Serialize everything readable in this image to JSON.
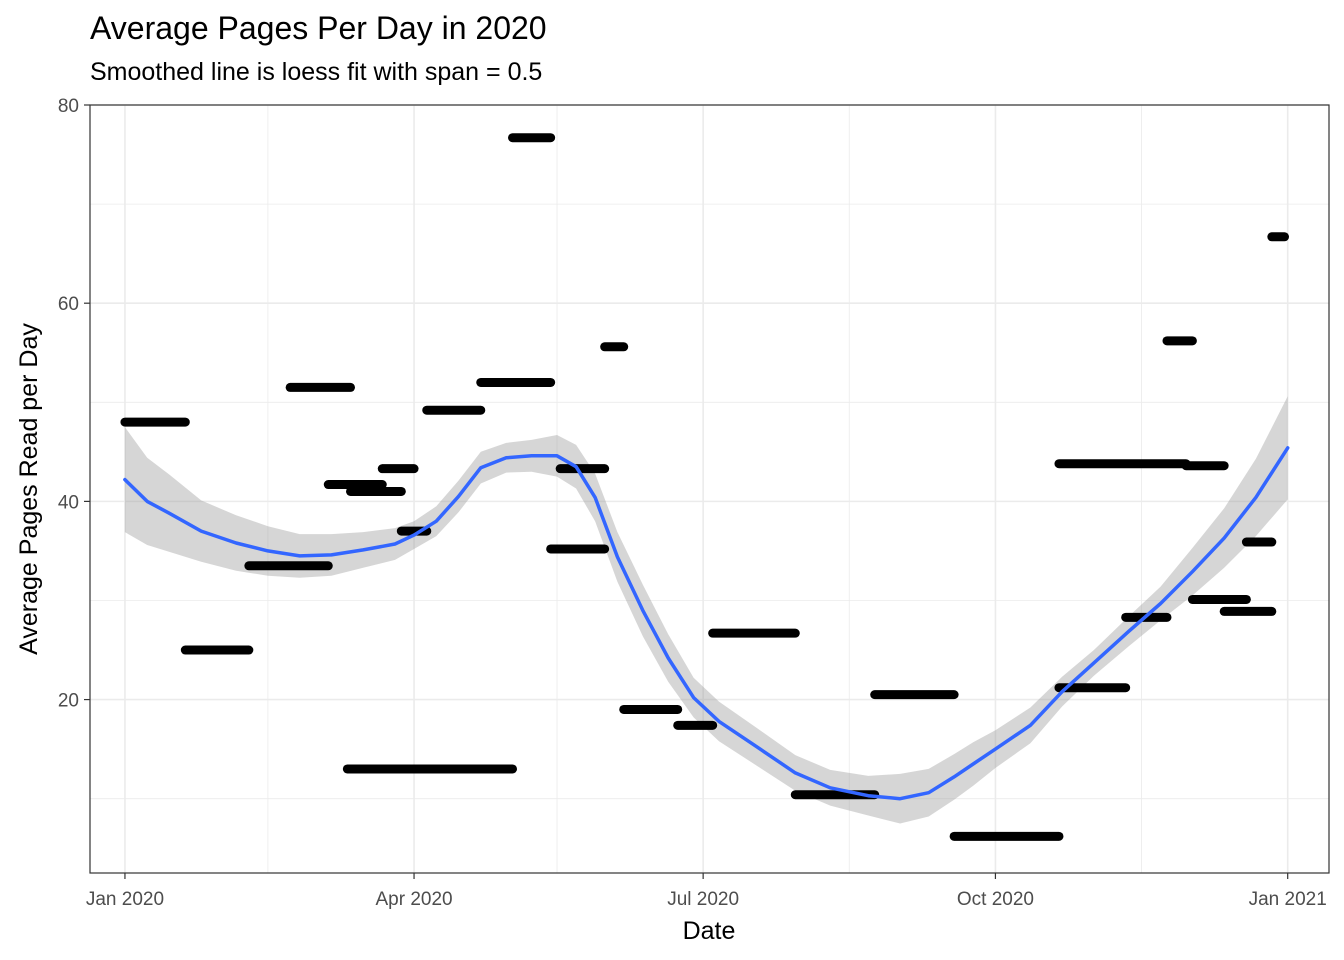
{
  "chart_data": {
    "type": "scatter",
    "title": "Average Pages Per Day in 2020",
    "subtitle": "Smoothed line is loess fit with span = 0.5",
    "xlabel": "Date",
    "ylabel": "Average Pages Read per Day",
    "x_axis_type": "date",
    "xlim": [
      "2019-12-21",
      "2021-01-14"
    ],
    "ylim": [
      2.5,
      80
    ],
    "x_ticks": [
      {
        "date": "2020-01-01",
        "label": "Jan 2020"
      },
      {
        "date": "2020-04-01",
        "label": "Apr 2020"
      },
      {
        "date": "2020-07-01",
        "label": "Jul 2020"
      },
      {
        "date": "2020-10-01",
        "label": "Oct 2020"
      },
      {
        "date": "2021-01-01",
        "label": "Jan 2021"
      }
    ],
    "x_minor_ticks": [
      "2020-02-15",
      "2020-05-16",
      "2020-08-16",
      "2020-11-16"
    ],
    "y_ticks": [
      20,
      40,
      60,
      80
    ],
    "y_minor_ticks": [
      10,
      30,
      50,
      70
    ],
    "grid": true,
    "colors": {
      "points": "#000000",
      "smooth_line": "#3366FF",
      "ribbon": "#999999",
      "grid": "#ebebeb",
      "panel_border": "#333333"
    },
    "series": [
      {
        "type": "scatter",
        "x_start": [
          "2020-01-01",
          "2020-01-20",
          "2020-02-09",
          "2020-02-22",
          "2020-03-05",
          "2020-03-12",
          "2020-03-22",
          "2020-03-11",
          "2020-03-28",
          "2020-04-05",
          "2020-04-22",
          "2020-05-02",
          "2020-05-14",
          "2020-05-17",
          "2020-05-31",
          "2020-06-06",
          "2020-06-23",
          "2020-07-04",
          "2020-07-30",
          "2020-08-24",
          "2020-09-18",
          "2020-10-21",
          "2020-10-21",
          "2020-11-11",
          "2020-11-24",
          "2020-11-30",
          "2020-12-02",
          "2020-12-12",
          "2020-12-19",
          "2020-12-27"
        ],
        "x_end": [
          "2020-01-20",
          "2020-02-09",
          "2020-03-05",
          "2020-03-12",
          "2020-03-22",
          "2020-03-28",
          "2020-04-01",
          "2020-05-02",
          "2020-04-05",
          "2020-04-22",
          "2020-05-14",
          "2020-05-14",
          "2020-05-31",
          "2020-05-31",
          "2020-06-06",
          "2020-06-23",
          "2020-07-04",
          "2020-07-30",
          "2020-08-24",
          "2020-09-18",
          "2020-10-21",
          "2020-11-11",
          "2020-11-30",
          "2020-11-24",
          "2020-12-02",
          "2020-12-12",
          "2020-12-19",
          "2020-12-27",
          "2020-12-27",
          "2020-12-31"
        ],
        "y": [
          48,
          25,
          33.5,
          51.5,
          41.7,
          41,
          43.3,
          13,
          37,
          49.2,
          52,
          76.7,
          35.2,
          43.3,
          55.6,
          19,
          17.4,
          26.7,
          10.4,
          20.5,
          6.2,
          21.2,
          43.8,
          28.3,
          56.2,
          43.6,
          30.1,
          28.9,
          35.9,
          66.7
        ]
      },
      {
        "type": "line",
        "name": "loess",
        "x": [
          "2020-01-01",
          "2020-01-08",
          "2020-01-15",
          "2020-01-25",
          "2020-02-05",
          "2020-02-15",
          "2020-02-25",
          "2020-03-06",
          "2020-03-16",
          "2020-03-26",
          "2020-04-01",
          "2020-04-08",
          "2020-04-15",
          "2020-04-22",
          "2020-04-30",
          "2020-05-08",
          "2020-05-16",
          "2020-05-22",
          "2020-05-28",
          "2020-06-04",
          "2020-06-12",
          "2020-06-20",
          "2020-06-28",
          "2020-07-06",
          "2020-07-18",
          "2020-07-30",
          "2020-08-10",
          "2020-08-22",
          "2020-09-01",
          "2020-09-10",
          "2020-09-18",
          "2020-09-24",
          "2020-10-01",
          "2020-10-12",
          "2020-10-22",
          "2020-11-01",
          "2020-11-12",
          "2020-11-22",
          "2020-12-02",
          "2020-12-12",
          "2020-12-22",
          "2021-01-01"
        ],
        "y": [
          42.2,
          40,
          38.8,
          37,
          35.8,
          35,
          34.5,
          34.6,
          35.1,
          35.7,
          36.6,
          38,
          40.5,
          43.4,
          44.4,
          44.6,
          44.6,
          43.5,
          40.4,
          34.4,
          29,
          24.2,
          20.2,
          17.8,
          15.2,
          12.6,
          11.1,
          10.3,
          10,
          10.6,
          12.2,
          13.5,
          15,
          17.4,
          20.8,
          23.7,
          26.9,
          29.7,
          32.9,
          36.3,
          40.4,
          45.4
        ],
        "lower": [
          36.9,
          35.6,
          34.9,
          33.9,
          33,
          32.5,
          32.3,
          32.5,
          33.3,
          34.1,
          35.2,
          36.5,
          38.9,
          41.8,
          42.9,
          43,
          42.5,
          41.3,
          38,
          31.9,
          26.4,
          21.8,
          18.2,
          15.8,
          13.3,
          10.8,
          9.3,
          8.3,
          7.5,
          8.2,
          9.9,
          11.3,
          13.1,
          15.6,
          19.3,
          22.4,
          25.4,
          28,
          30.5,
          33.3,
          36.5,
          40.2
        ],
        "upper": [
          47.5,
          44.4,
          42.7,
          40.1,
          38.6,
          37.5,
          36.7,
          36.7,
          36.9,
          37.3,
          38,
          39.5,
          42.1,
          45,
          45.9,
          46.2,
          46.7,
          45.7,
          42.8,
          36.9,
          31.6,
          26.6,
          22.2,
          19.8,
          17.1,
          14.4,
          12.9,
          12.3,
          12.5,
          13,
          14.5,
          15.7,
          16.9,
          19.2,
          22.3,
          25,
          28.4,
          31.4,
          35.3,
          39.3,
          44.3,
          50.6
        ]
      }
    ]
  }
}
